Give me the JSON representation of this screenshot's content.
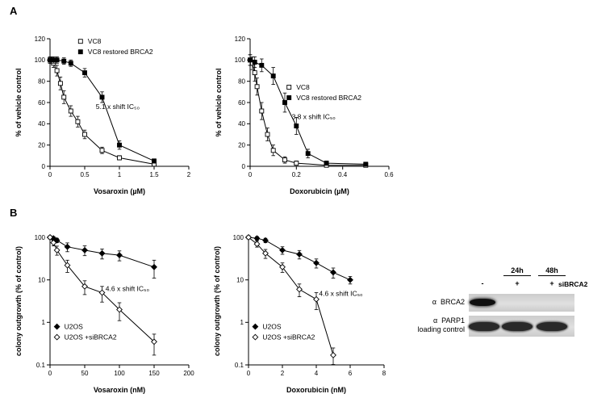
{
  "panels": {
    "a": "A",
    "b": "B"
  },
  "chart_data": [
    {
      "type": "line",
      "xlabel": "Vosaroxin (µM)",
      "ylabel": "% of vehicle control",
      "xlim": [
        0,
        2
      ],
      "xticks": [
        0,
        0.5,
        1,
        1.5,
        2
      ],
      "ylim": [
        0,
        120
      ],
      "yticks": [
        0,
        20,
        40,
        60,
        80,
        100,
        120
      ],
      "yscale": "linear",
      "grid": false,
      "legend": {
        "fx": 0.22,
        "fy": 0.02
      },
      "annotation": {
        "text": "5.1 x shift IC₅₀",
        "fx": 0.33,
        "fy": 0.55
      },
      "series": [
        {
          "name": "VC8",
          "marker": "square-open",
          "x": [
            0,
            0.025,
            0.05,
            0.1,
            0.15,
            0.2,
            0.3,
            0.4,
            0.5,
            0.75,
            1,
            1.5
          ],
          "y": [
            100,
            100,
            97,
            90,
            78,
            65,
            52,
            42,
            30,
            15,
            8,
            2
          ],
          "err": [
            3,
            3,
            4,
            5,
            6,
            6,
            5,
            5,
            4,
            3,
            2,
            1
          ]
        },
        {
          "name": "VC8 restored BRCA2",
          "marker": "square-filled",
          "x": [
            0,
            0.05,
            0.1,
            0.2,
            0.3,
            0.5,
            0.75,
            1,
            1.5
          ],
          "y": [
            100,
            100,
            100,
            99,
            97,
            88,
            65,
            20,
            5
          ],
          "err": [
            3,
            3,
            3,
            3,
            3,
            4,
            5,
            4,
            2
          ]
        }
      ]
    },
    {
      "type": "line",
      "xlabel": "Doxorubicin (µM)",
      "ylabel": "% of vehicle control",
      "xlim": [
        0,
        0.6
      ],
      "xticks": [
        0,
        0.2,
        0.4,
        0.6
      ],
      "ylim": [
        0,
        120
      ],
      "yticks": [
        0,
        20,
        40,
        60,
        80,
        100,
        120
      ],
      "yscale": "linear",
      "grid": false,
      "legend": {
        "fx": 0.28,
        "fy": 0.38
      },
      "annotation": {
        "text": "3.8 x shift IC₅₀",
        "fx": 0.3,
        "fy": 0.63
      },
      "series": [
        {
          "name": "VC8",
          "marker": "square-open",
          "x": [
            0,
            0.01,
            0.02,
            0.03,
            0.05,
            0.075,
            0.1,
            0.15,
            0.2,
            0.33,
            0.5
          ],
          "y": [
            100,
            97,
            88,
            75,
            52,
            30,
            15,
            6,
            3,
            1,
            1
          ],
          "err": [
            5,
            6,
            8,
            8,
            8,
            6,
            5,
            3,
            2,
            1,
            1
          ]
        },
        {
          "name": "VC8 restored BRCA2",
          "marker": "square-filled",
          "x": [
            0,
            0.02,
            0.05,
            0.1,
            0.15,
            0.2,
            0.25,
            0.33,
            0.5
          ],
          "y": [
            100,
            98,
            95,
            85,
            60,
            38,
            12,
            3,
            2
          ],
          "err": [
            5,
            5,
            6,
            8,
            9,
            8,
            4,
            2,
            1
          ]
        }
      ]
    },
    {
      "type": "line",
      "xlabel": "Vosaroxin (nM)",
      "ylabel": "colony outgrowth (% of control)",
      "xlim": [
        0,
        200
      ],
      "xticks": [
        0,
        50,
        100,
        150,
        200
      ],
      "ylim": [
        0.1,
        100
      ],
      "yticks": [
        0.1,
        1,
        10,
        100
      ],
      "yscale": "log",
      "grid": false,
      "legend": {
        "fx": 0.05,
        "fy": 0.7
      },
      "annotation": {
        "text": "4.6 x shift IC₅₀",
        "fx": 0.4,
        "fy": 0.42
      },
      "series": [
        {
          "name": "U2OS",
          "marker": "diamond-filled",
          "x": [
            0,
            5,
            10,
            25,
            50,
            75,
            100,
            150
          ],
          "y": [
            100,
            95,
            85,
            60,
            50,
            42,
            38,
            20
          ],
          "err": [
            8,
            8,
            10,
            14,
            13,
            11,
            10,
            9
          ]
        },
        {
          "name": "U2OS +siBRCA2",
          "marker": "diamond-open",
          "x": [
            0,
            5,
            10,
            25,
            50,
            75,
            100,
            150
          ],
          "y": [
            100,
            75,
            50,
            22,
            7,
            5,
            2,
            0.35
          ],
          "err": [
            8,
            12,
            12,
            7,
            2.5,
            2,
            0.9,
            0.18
          ]
        }
      ]
    },
    {
      "type": "line",
      "xlabel": "Doxorubicin (nM)",
      "ylabel": "colony outgrowth (% of control)",
      "xlim": [
        0,
        8
      ],
      "xticks": [
        0,
        2,
        4,
        6,
        8
      ],
      "ylim": [
        0.1,
        100
      ],
      "yticks": [
        0.1,
        1,
        10,
        100
      ],
      "yscale": "log",
      "grid": false,
      "legend": {
        "fx": 0.05,
        "fy": 0.7
      },
      "annotation": {
        "text": "4.6 x shift IC₅₀",
        "fx": 0.52,
        "fy": 0.46
      },
      "series": [
        {
          "name": "U2OS",
          "marker": "diamond-filled",
          "x": [
            0,
            0.5,
            1,
            2,
            3,
            4,
            5,
            6
          ],
          "y": [
            100,
            95,
            85,
            50,
            40,
            25,
            15,
            10
          ],
          "err": [
            8,
            9,
            10,
            10,
            9,
            6,
            4,
            2
          ]
        },
        {
          "name": "U2OS +siBRCA2",
          "marker": "diamond-open",
          "x": [
            0,
            0.5,
            1,
            2,
            3,
            4,
            5
          ],
          "y": [
            100,
            70,
            42,
            20,
            6,
            3.5,
            0.17
          ],
          "err": [
            8,
            11,
            10,
            5,
            2,
            1.5,
            0.08
          ]
        }
      ]
    }
  ],
  "blot": {
    "timepoints": [
      "24h",
      "48h"
    ],
    "condition_label": "siBRCA2",
    "lane_signs": [
      "-",
      "+",
      "+"
    ],
    "rows": [
      {
        "antibody": "α",
        "target": "BRCA2",
        "note": "",
        "bands": [
          1,
          0,
          0
        ]
      },
      {
        "antibody": "α",
        "target": "PARP1",
        "note": "loading control",
        "bands": [
          1,
          1,
          1
        ]
      }
    ]
  }
}
